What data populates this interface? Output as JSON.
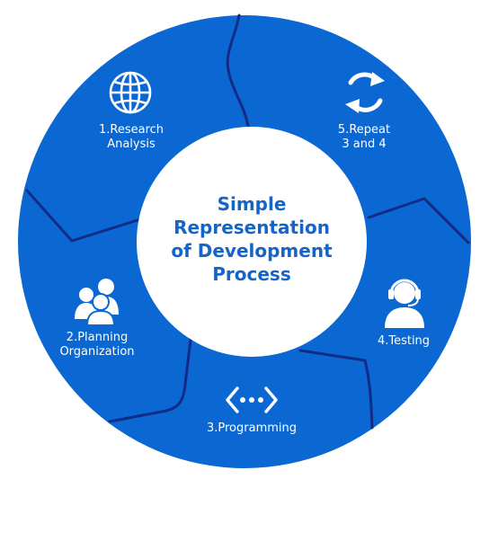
{
  "center": {
    "lines": [
      "Simple",
      "Representation",
      "of Development",
      "Process"
    ]
  },
  "steps": [
    {
      "line1": "1.Research",
      "line2": "Analysis",
      "icon": "globe-icon"
    },
    {
      "line1": "2.Planning",
      "line2": "Organization",
      "icon": "people-icon"
    },
    {
      "line1": "3.Programming",
      "line2": "",
      "icon": "code-dots-icon"
    },
    {
      "line1": "4.Testing",
      "line2": "",
      "icon": "headset-user-icon"
    },
    {
      "line1": "5.Repeat",
      "line2": "3 and 4",
      "icon": "refresh-arrows-icon"
    }
  ],
  "colors": {
    "ring": "#0b68d2",
    "divider": "#122b86",
    "title": "#1565c8",
    "text": "#ffffff"
  }
}
